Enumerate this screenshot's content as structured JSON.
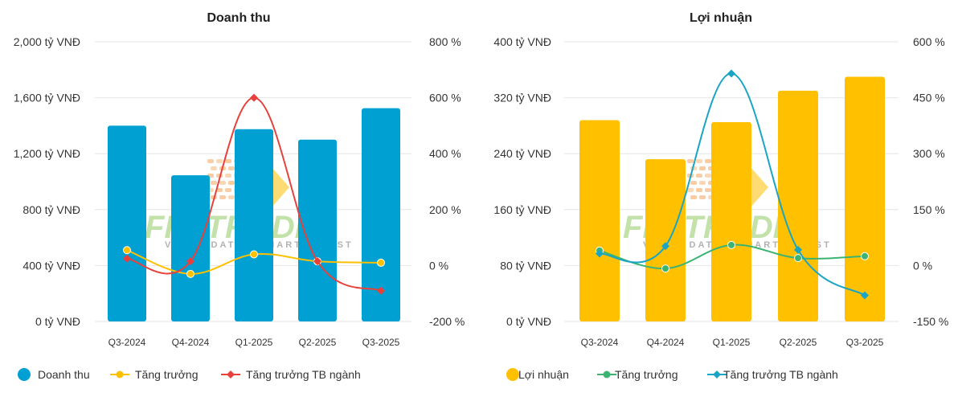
{
  "watermark": {
    "brand": "FIINTRADE",
    "tagline": "VALUE DATA - SMART INVEST"
  },
  "chart_data": [
    {
      "type": "bar",
      "title": "Doanh thu",
      "categories": [
        "Q3-2024",
        "Q4-2024",
        "Q1-2025",
        "Q2-2025",
        "Q3-2025"
      ],
      "y_left": {
        "ylim": [
          0,
          2000
        ],
        "ticks": [
          0,
          400,
          800,
          1200,
          1600,
          2000
        ],
        "tick_labels": [
          "0 tỷ VNĐ",
          "400 tỷ VNĐ",
          "800 tỷ VNĐ",
          "1,200 tỷ VNĐ",
          "1,600 tỷ VNĐ",
          "2,000 tỷ VNĐ"
        ]
      },
      "y_right": {
        "ylim": [
          -200,
          800
        ],
        "ticks": [
          -200,
          0,
          200,
          400,
          600,
          800
        ],
        "tick_labels": [
          "-200 %",
          "0 %",
          "200 %",
          "400 %",
          "600 %",
          "800 %"
        ]
      },
      "series": [
        {
          "name": "Doanh thu",
          "kind": "bar",
          "axis": "left",
          "color": "#00a0d2",
          "values": [
            1400,
            1045,
            1375,
            1300,
            1525
          ]
        },
        {
          "name": "Tăng trưởng",
          "kind": "line",
          "axis": "right",
          "color": "#ffc000",
          "marker": "circle",
          "values": [
            55,
            -30,
            40,
            15,
            10
          ]
        },
        {
          "name": "Tăng trưởng TB ngành",
          "kind": "line",
          "axis": "right",
          "color": "#e8413c",
          "marker": "diamond",
          "values": [
            25,
            15,
            600,
            15,
            -90
          ]
        }
      ]
    },
    {
      "type": "bar",
      "title": "Lợi nhuận",
      "categories": [
        "Q3-2024",
        "Q4-2024",
        "Q1-2025",
        "Q2-2025",
        "Q3-2025"
      ],
      "y_left": {
        "ylim": [
          0,
          400
        ],
        "ticks": [
          0,
          80,
          160,
          240,
          320,
          400
        ],
        "tick_labels": [
          "0 tỷ VNĐ",
          "80 tỷ VNĐ",
          "160 tỷ VNĐ",
          "240 tỷ VNĐ",
          "320 tỷ VNĐ",
          "400 tỷ VNĐ"
        ]
      },
      "y_right": {
        "ylim": [
          -150,
          600
        ],
        "ticks": [
          -150,
          0,
          150,
          300,
          450,
          600
        ],
        "tick_labels": [
          "-150 %",
          "0 %",
          "150 %",
          "300 %",
          "450 %",
          "600 %"
        ]
      },
      "series": [
        {
          "name": "Lợi nhuận",
          "kind": "bar",
          "axis": "left",
          "color": "#ffc000",
          "values": [
            288,
            232,
            285,
            330,
            350
          ]
        },
        {
          "name": "Tăng trưởng",
          "kind": "line",
          "axis": "right",
          "color": "#3cb371",
          "marker": "circle",
          "values": [
            40,
            -8,
            55,
            20,
            25
          ]
        },
        {
          "name": "Tăng trưởng TB ngành",
          "kind": "line",
          "axis": "right",
          "color": "#1ba5c4",
          "marker": "diamond",
          "values": [
            32,
            52,
            515,
            42,
            -80
          ]
        }
      ]
    }
  ]
}
